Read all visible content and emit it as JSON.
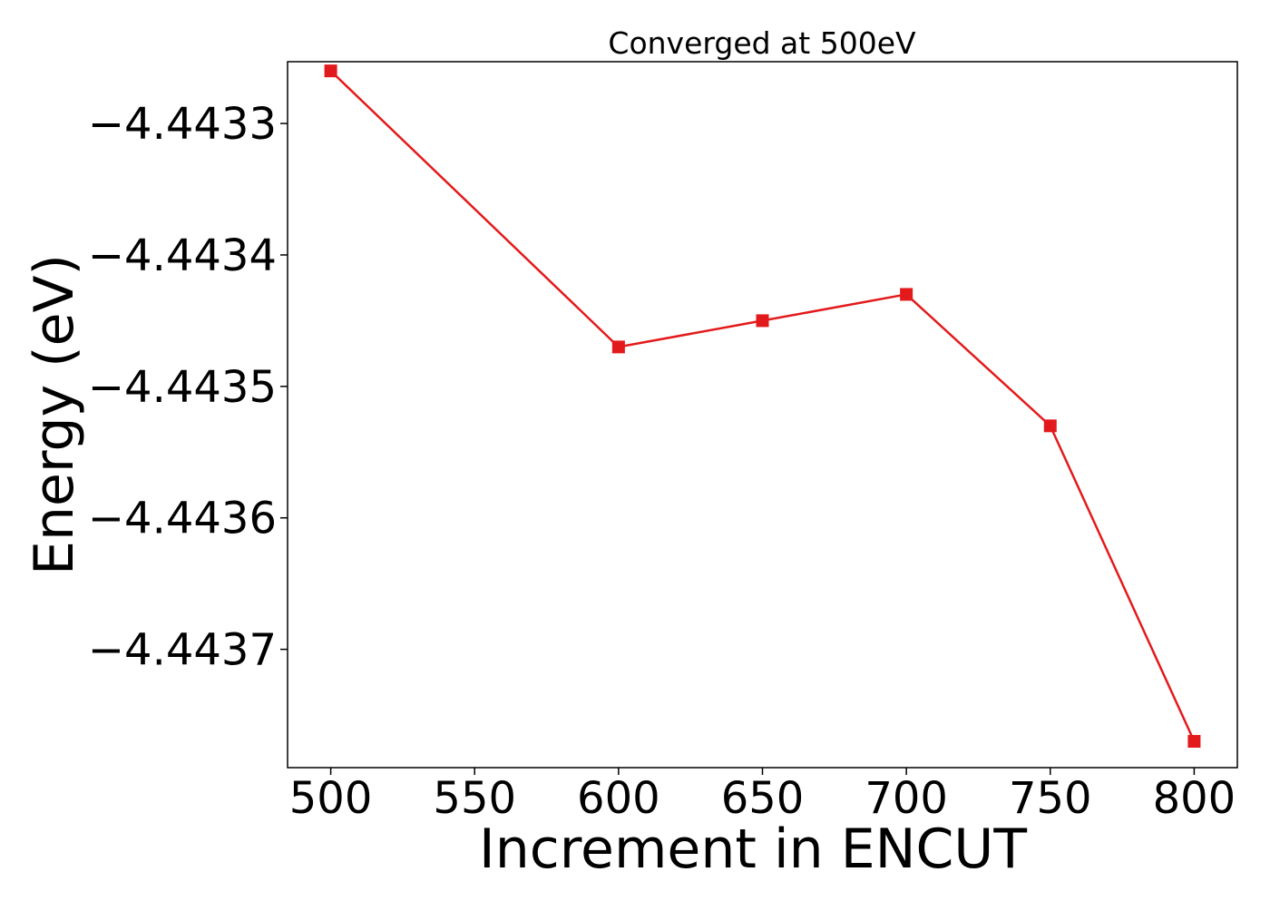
{
  "chart_data": {
    "type": "line",
    "title": "Converged at 500eV",
    "xlabel": "Increment in ENCUT",
    "ylabel": "Energy (eV)",
    "x": [
      500,
      600,
      650,
      700,
      750,
      800
    ],
    "series": [
      {
        "values": [
          -4.44326,
          -4.44347,
          -4.44345,
          -4.44343,
          -4.44353,
          -4.44377
        ],
        "color": "#e31a1c",
        "marker": "square"
      }
    ],
    "xlim": [
      485,
      815
    ],
    "ylim": [
      -4.44379,
      -4.443253
    ],
    "xticks": [
      500,
      550,
      600,
      650,
      700,
      750,
      800
    ],
    "xtick_labels": [
      "500",
      "550",
      "600",
      "650",
      "700",
      "750",
      "800"
    ],
    "yticks": [
      -4.4433,
      -4.4434,
      -4.4435,
      -4.4436,
      -4.4437
    ],
    "ytick_labels": [
      "−4.4433",
      "−4.4434",
      "−4.4435",
      "−4.4436",
      "−4.4437"
    ],
    "grid": false,
    "legend": "none"
  }
}
